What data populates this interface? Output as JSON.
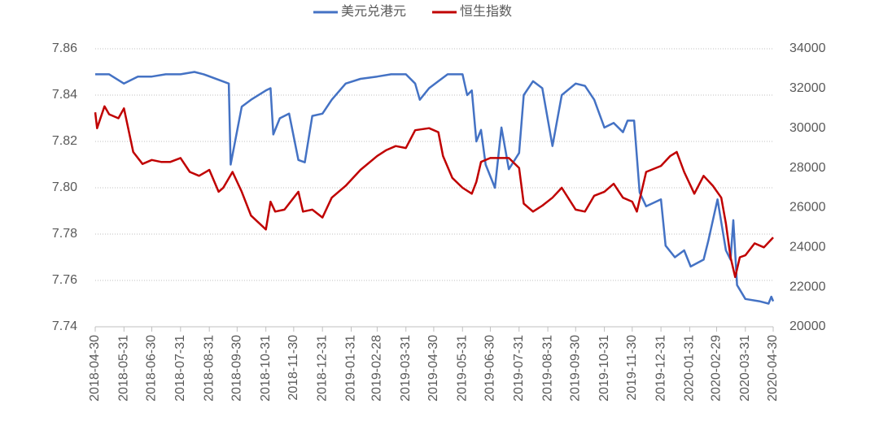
{
  "chart_data": {
    "type": "line",
    "xlim": [
      "2018-04-30",
      "2020-04-30"
    ],
    "xticks": [
      "2018-04-30",
      "2018-05-31",
      "2018-06-30",
      "2018-07-31",
      "2018-08-31",
      "2018-09-30",
      "2018-10-31",
      "2018-11-30",
      "2018-12-31",
      "2019-01-31",
      "2019-02-28",
      "2019-03-31",
      "2019-04-30",
      "2019-05-31",
      "2019-06-30",
      "2019-07-31",
      "2019-08-31",
      "2019-09-30",
      "2019-10-31",
      "2019-11-30",
      "2019-12-31",
      "2020-01-31",
      "2020-02-29",
      "2020-03-31",
      "2020-04-30"
    ],
    "ylim": [
      7.74,
      7.86
    ],
    "yticks": [
      {
        "value": 7.74,
        "label": "7.74"
      },
      {
        "value": 7.76,
        "label": "7.76"
      },
      {
        "value": 7.78,
        "label": "7.78"
      },
      {
        "value": 7.8,
        "label": "7.80"
      },
      {
        "value": 7.82,
        "label": "7.82"
      },
      {
        "value": 7.84,
        "label": "7.84"
      },
      {
        "value": 7.86,
        "label": "7.86"
      }
    ],
    "y2lim": [
      20000,
      34000
    ],
    "y2ticks": [
      20000,
      22000,
      24000,
      26000,
      28000,
      30000,
      32000,
      34000
    ],
    "grid": true,
    "legend": "top",
    "series": [
      {
        "name": "美元兑港元",
        "color": "#4472c4",
        "x": [
          "2018-04-30",
          "2018-05-15",
          "2018-05-31",
          "2018-06-15",
          "2018-06-30",
          "2018-07-15",
          "2018-07-31",
          "2018-08-15",
          "2018-08-25",
          "2018-09-21",
          "2018-09-23",
          "2018-10-05",
          "2018-10-15",
          "2018-10-31",
          "2018-11-05",
          "2018-11-08",
          "2018-11-15",
          "2018-11-25",
          "2018-12-05",
          "2018-12-12",
          "2018-12-20",
          "2018-12-31",
          "2019-01-10",
          "2019-01-25",
          "2019-02-10",
          "2019-02-28",
          "2019-03-15",
          "2019-03-31",
          "2019-04-10",
          "2019-04-15",
          "2019-04-25",
          "2019-05-05",
          "2019-05-15",
          "2019-05-31",
          "2019-06-05",
          "2019-06-10",
          "2019-06-15",
          "2019-06-20",
          "2019-06-25",
          "2019-07-05",
          "2019-07-12",
          "2019-07-20",
          "2019-07-31",
          "2019-08-05",
          "2019-08-15",
          "2019-08-25",
          "2019-09-05",
          "2019-09-15",
          "2019-09-30",
          "2019-10-10",
          "2019-10-20",
          "2019-10-31",
          "2019-11-10",
          "2019-11-20",
          "2019-11-25",
          "2019-12-02",
          "2019-12-08",
          "2019-12-15",
          "2019-12-31",
          "2020-01-05",
          "2020-01-15",
          "2020-01-25",
          "2020-02-01",
          "2020-02-15",
          "2020-02-20",
          "2020-03-01",
          "2020-03-10",
          "2020-03-15",
          "2020-03-18",
          "2020-03-22",
          "2020-03-31",
          "2020-04-15",
          "2020-04-25",
          "2020-04-28",
          "2020-04-30"
        ],
        "values": [
          7.849,
          7.849,
          7.845,
          7.848,
          7.848,
          7.849,
          7.849,
          7.85,
          7.849,
          7.845,
          7.81,
          7.835,
          7.838,
          7.842,
          7.843,
          7.823,
          7.83,
          7.832,
          7.812,
          7.811,
          7.831,
          7.832,
          7.838,
          7.845,
          7.847,
          7.848,
          7.849,
          7.849,
          7.845,
          7.838,
          7.843,
          7.846,
          7.849,
          7.849,
          7.84,
          7.842,
          7.82,
          7.825,
          7.81,
          7.8,
          7.826,
          7.808,
          7.815,
          7.84,
          7.846,
          7.843,
          7.818,
          7.84,
          7.845,
          7.844,
          7.838,
          7.826,
          7.828,
          7.824,
          7.829,
          7.829,
          7.798,
          7.792,
          7.795,
          7.775,
          7.77,
          7.773,
          7.766,
          7.769,
          7.777,
          7.795,
          7.773,
          7.769,
          7.786,
          7.758,
          7.752,
          7.751,
          7.75,
          7.753,
          7.751
        ]
      },
      {
        "name": "恒生指数",
        "color": "#c00000",
        "axis": "y2",
        "x": [
          "2018-04-30",
          "2018-05-02",
          "2018-05-10",
          "2018-05-15",
          "2018-05-25",
          "2018-05-31",
          "2018-06-10",
          "2018-06-20",
          "2018-06-30",
          "2018-07-10",
          "2018-07-20",
          "2018-07-31",
          "2018-08-10",
          "2018-08-20",
          "2018-08-31",
          "2018-09-10",
          "2018-09-15",
          "2018-09-25",
          "2018-10-05",
          "2018-10-15",
          "2018-10-31",
          "2018-11-05",
          "2018-11-10",
          "2018-11-20",
          "2018-11-30",
          "2018-12-05",
          "2018-12-10",
          "2018-12-20",
          "2018-12-31",
          "2019-01-10",
          "2019-01-25",
          "2019-02-10",
          "2019-02-28",
          "2019-03-10",
          "2019-03-20",
          "2019-03-31",
          "2019-04-10",
          "2019-04-25",
          "2019-05-05",
          "2019-05-10",
          "2019-05-20",
          "2019-05-31",
          "2019-06-10",
          "2019-06-15",
          "2019-06-20",
          "2019-06-30",
          "2019-07-10",
          "2019-07-20",
          "2019-07-31",
          "2019-08-05",
          "2019-08-15",
          "2019-08-25",
          "2019-09-05",
          "2019-09-15",
          "2019-09-30",
          "2019-10-10",
          "2019-10-20",
          "2019-10-31",
          "2019-11-10",
          "2019-11-20",
          "2019-11-30",
          "2019-12-05",
          "2019-12-15",
          "2019-12-31",
          "2020-01-10",
          "2020-01-17",
          "2020-01-25",
          "2020-02-05",
          "2020-02-15",
          "2020-02-25",
          "2020-03-05",
          "2020-03-10",
          "2020-03-15",
          "2020-03-20",
          "2020-03-25",
          "2020-03-31",
          "2020-04-10",
          "2020-04-20",
          "2020-04-30"
        ],
        "values": [
          30800,
          30000,
          31100,
          30700,
          30500,
          31000,
          28800,
          28200,
          28400,
          28300,
          28300,
          28500,
          27800,
          27600,
          27900,
          26800,
          27000,
          27800,
          26800,
          25600,
          24900,
          26300,
          25800,
          25900,
          26500,
          26800,
          25800,
          25900,
          25500,
          26500,
          27100,
          27900,
          28600,
          28900,
          29100,
          29000,
          29900,
          30000,
          29800,
          28600,
          27500,
          27000,
          26700,
          27300,
          28300,
          28500,
          28500,
          28500,
          28000,
          26200,
          25800,
          26100,
          26500,
          27000,
          25900,
          25800,
          26600,
          26800,
          27200,
          26500,
          26300,
          25800,
          27800,
          28100,
          28600,
          28800,
          27800,
          26700,
          27600,
          27100,
          26500,
          25200,
          23500,
          22500,
          23500,
          23600,
          24200,
          24000,
          24500
        ]
      }
    ]
  }
}
